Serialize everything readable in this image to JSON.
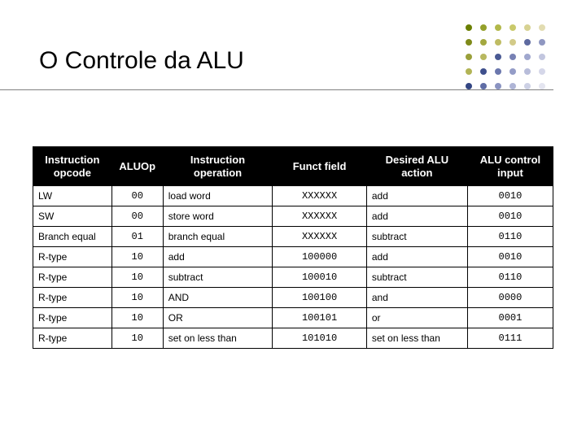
{
  "title": "O Controle da ALU",
  "colors": {
    "header_bg": "#000000",
    "header_fg": "#ffffff",
    "cell_border": "#000000",
    "page_bg": "#ffffff",
    "underline": "#808080"
  },
  "table": {
    "columns": [
      "Instruction opcode",
      "ALUOp",
      "Instruction operation",
      "Funct field",
      "Desired ALU action",
      "ALU control input"
    ],
    "col_align": [
      "left",
      "center",
      "left",
      "center",
      "left",
      "center"
    ],
    "col_mono": [
      false,
      true,
      false,
      true,
      false,
      true
    ],
    "rows": [
      [
        "LW",
        "00",
        "load word",
        "XXXXXX",
        "add",
        "0010"
      ],
      [
        "SW",
        "00",
        "store word",
        "XXXXXX",
        "add",
        "0010"
      ],
      [
        "Branch equal",
        "01",
        "branch equal",
        "XXXXXX",
        "subtract",
        "0110"
      ],
      [
        "R-type",
        "10",
        "add",
        "100000",
        "add",
        "0010"
      ],
      [
        "R-type",
        "10",
        "subtract",
        "100010",
        "subtract",
        "0110"
      ],
      [
        "R-type",
        "10",
        "AND",
        "100100",
        "and",
        "0000"
      ],
      [
        "R-type",
        "10",
        "OR",
        "100101",
        "or",
        "0001"
      ],
      [
        "R-type",
        "10",
        "set on less than",
        "101010",
        "set on less than",
        "0111"
      ]
    ]
  }
}
